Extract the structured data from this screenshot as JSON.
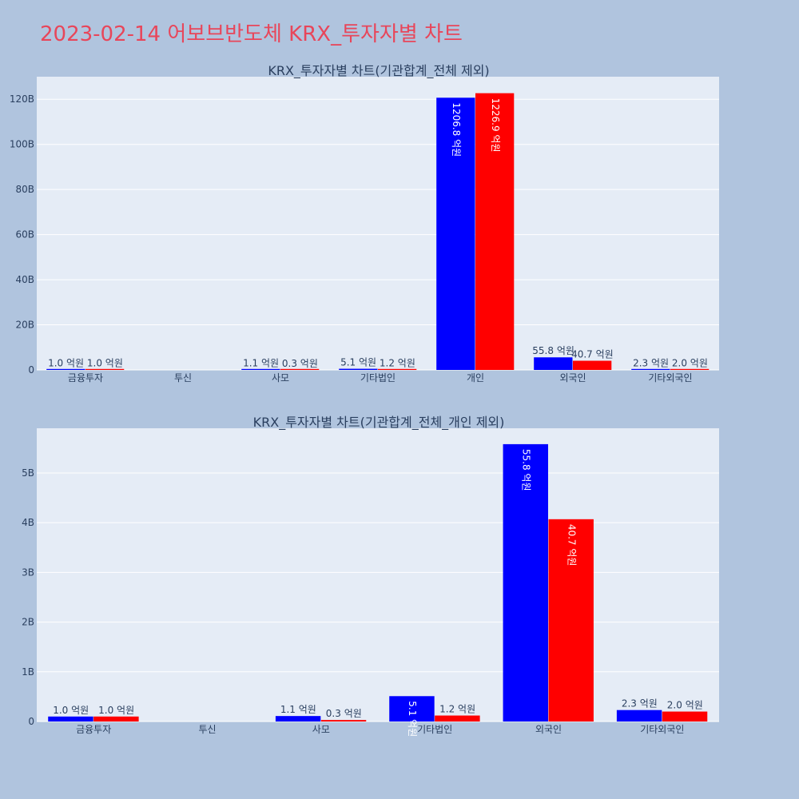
{
  "title": "2023-02-14 어보브반도체 KRX_투자자별 차트",
  "colors": {
    "buy": "#0000ff",
    "sell": "#ff0000",
    "plot_bg": "#e5ecf6",
    "page_bg": "#b0c4de",
    "title": "#e8465a"
  },
  "chart_data": [
    {
      "type": "bar",
      "title": "KRX_투자자별 차트(기관합계_전체 제외)",
      "categories": [
        "금융투자",
        "투신",
        "사모",
        "기타법인",
        "개인",
        "외국인",
        "기타외국인"
      ],
      "series": [
        {
          "values": [
            100000000,
            0,
            110000000,
            510000000,
            120680000000,
            5580000000,
            230000000
          ],
          "labels": [
            "1.0 억원",
            "",
            "1.1 억원",
            "5.1 억원",
            "1206.8 억원",
            "55.8 억원",
            "2.3 억원"
          ]
        },
        {
          "values": [
            100000000,
            0,
            30000000,
            120000000,
            122690000000,
            4070000000,
            200000000
          ],
          "labels": [
            "1.0 억원",
            "",
            "0.3 억원",
            "1.2 억원",
            "1226.9 억원",
            "40.7 억원",
            "2.0 억원"
          ]
        }
      ],
      "ylim": [
        0,
        130000000000
      ],
      "yticks": [
        0,
        20000000000,
        40000000000,
        60000000000,
        80000000000,
        100000000000,
        120000000000
      ],
      "ytick_labels": [
        "0",
        "20B",
        "40B",
        "60B",
        "80B",
        "100B",
        "120B"
      ]
    },
    {
      "type": "bar",
      "title": "KRX_투자자별 차트(기관합계_전체_개인 제외)",
      "categories": [
        "금융투자",
        "투신",
        "사모",
        "기타법인",
        "외국인",
        "기타외국인"
      ],
      "series": [
        {
          "values": [
            100000000,
            0,
            110000000,
            510000000,
            5580000000,
            230000000
          ],
          "labels": [
            "1.0 억원",
            "",
            "1.1 억원",
            "5.1 억원",
            "55.8 억원",
            "2.3 억원"
          ]
        },
        {
          "values": [
            100000000,
            0,
            30000000,
            120000000,
            4070000000,
            200000000
          ],
          "labels": [
            "1.0 억원",
            "",
            "0.3 억원",
            "1.2 억원",
            "40.7 억원",
            "2.0 억원"
          ]
        }
      ],
      "ylim": [
        0,
        5900000000
      ],
      "yticks": [
        0,
        1000000000,
        2000000000,
        3000000000,
        4000000000,
        5000000000
      ],
      "ytick_labels": [
        "0",
        "1B",
        "2B",
        "3B",
        "4B",
        "5B"
      ]
    }
  ]
}
